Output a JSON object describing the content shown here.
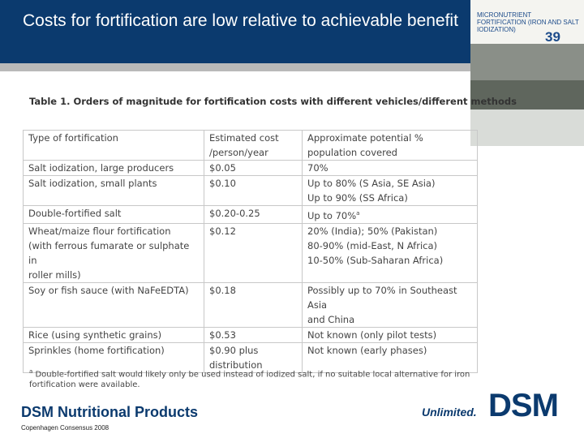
{
  "header": {
    "title": "Costs for fortification are low relative to achievable benefit",
    "slide_number": "39"
  },
  "cover": {
    "title": "MICRONUTRIENT FORTIFICATION (IRON AND SALT IODIZATION)"
  },
  "table": {
    "caption": "Table 1. Orders of magnitude for fortification costs with different vehicles/different methods",
    "rows": [
      {
        "cells": [
          [
            "Type of fortification"
          ],
          [
            "Estimated cost",
            "/person/year"
          ],
          [
            "Approximate potential %",
            "population covered"
          ]
        ]
      },
      {
        "cells": [
          [
            "Salt iodization, large producers"
          ],
          [
            "$0.05"
          ],
          [
            "70%"
          ]
        ]
      },
      {
        "cells": [
          [
            "Salt iodization, small plants"
          ],
          [
            "$0.10"
          ],
          [
            "Up to 80% (S Asia, SE Asia)",
            "Up to 90% (SS Africa)"
          ]
        ]
      },
      {
        "cells": [
          [
            "Double-fortified salt"
          ],
          [
            "$0.20-0.25"
          ],
          [
            "Up to 70%"
          ]
        ],
        "ref": "a"
      },
      {
        "cells": [
          [
            "Wheat/maize flour fortification",
            "(with ferrous fumarate or sulphate in",
            "roller mills)"
          ],
          [
            "$0.12"
          ],
          [
            "20% (India); 50% (Pakistan)",
            "80-90% (mid-East, N Africa)",
            "10-50% (Sub-Saharan Africa)"
          ]
        ]
      },
      {
        "cells": [
          [
            "Soy or fish sauce (with NaFeEDTA)"
          ],
          [
            "$0.18"
          ],
          [
            "Possibly up to 70% in Southeast Asia",
            "and China"
          ]
        ]
      },
      {
        "cells": [
          [
            "Rice (using synthetic grains)"
          ],
          [
            "$0.53"
          ],
          [
            "Not known (only pilot tests)"
          ]
        ]
      },
      {
        "cells": [
          [
            "Sprinkles (home fortification)"
          ],
          [
            "$0.90 plus",
            "distribution"
          ],
          [
            "Not known (early phases)"
          ]
        ]
      }
    ],
    "footnote": {
      "marker": "a",
      "text": "Double-fortified salt would likely only be used instead of iodized salt, if no suitable local alternative for iron fortification were available."
    }
  },
  "footer": {
    "company": "DSM Nutritional Products",
    "event": "Copenhagen Consensus 2008",
    "slogan": "Unlimited.",
    "logo": "DSM"
  }
}
